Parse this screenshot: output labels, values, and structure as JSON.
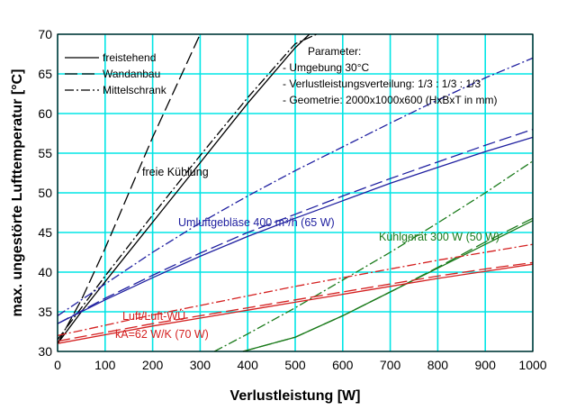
{
  "chart_data": {
    "type": "line",
    "title": "",
    "xlabel": "Verlustleistung [W]",
    "ylabel": "max. ungestörte Lufttemperatur [°C]",
    "xlim": [
      0,
      1000
    ],
    "ylim": [
      30,
      70
    ],
    "xticks": [
      0,
      100,
      200,
      300,
      400,
      500,
      600,
      700,
      800,
      900,
      1000
    ],
    "yticks": [
      30,
      35,
      40,
      45,
      50,
      55,
      60,
      65,
      70
    ],
    "grid": true,
    "grid_color": "#00e5e5",
    "legend_position": "top-left",
    "legend": [
      {
        "label": "freistehend",
        "dash": "solid"
      },
      {
        "label": "Wandanbau",
        "dash": "dash"
      },
      {
        "label": "Mittelschrank",
        "dash": "dashdot"
      }
    ],
    "parameters": {
      "heading": "Parameter:",
      "lines": [
        "- Umgebung 30°C",
        "- Verlustleistungsverteilung: 1/3 : 1/3 : 1/3",
        "- Geometrie: 2000x1000x600  (HxBxT in mm)"
      ]
    },
    "annotations": [
      {
        "text": "freie Kühlung",
        "color": "#000000"
      },
      {
        "text": "Umluftgebläse 400 m³/h  (65 W)",
        "color": "#2020a0"
      },
      {
        "text": "Kühlgerät 300 W (50 W)",
        "color": "#1a7a1a"
      },
      {
        "text": "Luft/Luft-WÜ",
        "color": "#d42020"
      },
      {
        "text": "kA=62 W/K (70 W)",
        "color": "#d42020"
      }
    ],
    "series": [
      {
        "group": "freie Kühlung",
        "dash": "solid",
        "color": "#000000",
        "x": [
          0,
          50,
          100,
          200,
          300,
          400,
          500,
          530
        ],
        "y": [
          31,
          35,
          38.8,
          46.3,
          53.8,
          61.3,
          68.3,
          70
        ]
      },
      {
        "group": "freie Kühlung",
        "dash": "dash",
        "color": "#000000",
        "x": [
          0,
          50,
          100,
          150,
          200,
          250,
          300
        ],
        "y": [
          31,
          36.5,
          43,
          50,
          57,
          63.5,
          70
        ]
      },
      {
        "group": "freie Kühlung",
        "dash": "dashdot",
        "color": "#000000",
        "x": [
          0,
          50,
          100,
          200,
          300,
          400,
          500,
          545
        ],
        "y": [
          31.5,
          35.5,
          39.5,
          47.2,
          54.7,
          62,
          68.8,
          70
        ]
      },
      {
        "group": "Umluftgebläse",
        "dash": "solid",
        "color": "#2020a0",
        "x": [
          0,
          100,
          200,
          300,
          400,
          500,
          600,
          700,
          800,
          900,
          1000
        ],
        "y": [
          33.5,
          36.5,
          39.3,
          42,
          44.5,
          46.8,
          49,
          51.2,
          53.2,
          55.2,
          57
        ]
      },
      {
        "group": "Umluftgebläse",
        "dash": "dash",
        "color": "#2020a0",
        "x": [
          0,
          100,
          200,
          300,
          400,
          500,
          600,
          700,
          800,
          900,
          1000
        ],
        "y": [
          33.5,
          36.7,
          39.6,
          42.4,
          45,
          47.3,
          49.6,
          51.8,
          53.9,
          56,
          58
        ]
      },
      {
        "group": "Umluftgebläse",
        "dash": "dashdot",
        "color": "#2020a0",
        "x": [
          0,
          100,
          200,
          300,
          400,
          500,
          600,
          700,
          800,
          900,
          1000
        ],
        "y": [
          34.5,
          38.5,
          42.5,
          46.2,
          49.6,
          52.8,
          55.8,
          58.8,
          61.7,
          64.5,
          67
        ]
      },
      {
        "group": "Kühlgerät",
        "dash": "solid",
        "color": "#1a7a1a",
        "x": [
          390,
          500,
          600,
          700,
          800,
          900,
          1000
        ],
        "y": [
          30,
          31.8,
          34.5,
          37.5,
          40.5,
          43.5,
          46.5
        ]
      },
      {
        "group": "Kühlgerät",
        "dash": "dash",
        "color": "#1a7a1a",
        "x": [
          390,
          500,
          600,
          700,
          800,
          900,
          1000
        ],
        "y": [
          30,
          31.8,
          34.5,
          37.5,
          40.6,
          43.8,
          46.8
        ]
      },
      {
        "group": "Kühlgerät",
        "dash": "dashdot",
        "color": "#1a7a1a",
        "x": [
          330,
          400,
          500,
          600,
          700,
          800,
          900,
          1000
        ],
        "y": [
          30,
          32.2,
          35.5,
          39,
          42.5,
          46.2,
          50,
          54
        ]
      },
      {
        "group": "Luft/Luft-WÜ",
        "dash": "solid",
        "color": "#d42020",
        "x": [
          0,
          100,
          200,
          300,
          400,
          500,
          600,
          700,
          800,
          900,
          1000
        ],
        "y": [
          31,
          32.1,
          33.2,
          34.2,
          35.2,
          36.2,
          37.2,
          38.2,
          39.2,
          40.1,
          41
        ]
      },
      {
        "group": "Luft/Luft-WÜ",
        "dash": "dash",
        "color": "#d42020",
        "x": [
          0,
          100,
          200,
          300,
          400,
          500,
          600,
          700,
          800,
          900,
          1000
        ],
        "y": [
          31.3,
          32.4,
          33.5,
          34.5,
          35.5,
          36.5,
          37.5,
          38.5,
          39.5,
          40.4,
          41.2
        ]
      },
      {
        "group": "Luft/Luft-WÜ",
        "dash": "dashdot",
        "color": "#d42020",
        "x": [
          0,
          100,
          200,
          300,
          400,
          500,
          600,
          700,
          800,
          900,
          1000
        ],
        "y": [
          32,
          33.3,
          34.6,
          35.8,
          37,
          38.2,
          39.3,
          40.4,
          41.5,
          42.5,
          43.5
        ]
      }
    ]
  }
}
